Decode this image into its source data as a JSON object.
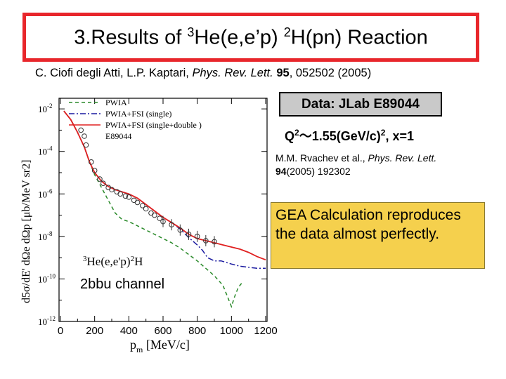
{
  "title": {
    "prefix": "3.Results of ",
    "sup1": "3",
    "mid": "He(e,e’p) ",
    "sup2": "2",
    "suffix": "H(pn) Reaction"
  },
  "citation": {
    "authors": "C. Ciofi degli Atti, L.P. Kaptari, ",
    "journal": "Phys. Rev. Lett.",
    "volume": "95",
    "rest": ", 052502 (2005)"
  },
  "data_box": "Data: JLab E89044",
  "kinematics": {
    "q": "Q",
    "q_sup": "2",
    "approx": "～1.55(GeV/c)",
    "c_sup": "2",
    "x_part": ", x=1"
  },
  "reference2": {
    "authors": "M.M. Rvachev  et al., ",
    "journal": "Phys. Rev. Lett.",
    "volume": "94",
    "rest": "(2005) 192302"
  },
  "gea_note": "GEA Calculation reproduces the data almost perfectly.",
  "channel_label": "2bbu channel",
  "reaction_label": {
    "pre": "3",
    "a": "He(e,e'p)",
    "b": "2",
    "c": "H"
  },
  "chart_data": {
    "type": "line",
    "xlabel": "p_m [MeV/c]",
    "ylabel": "d5σ/dE' dΩe dΩp [μb/MeV sr2]",
    "xlim": [
      0,
      1200
    ],
    "ylim_log10": [
      -12,
      -1.5
    ],
    "x_ticks": [
      "0",
      "200",
      "400",
      "600",
      "800",
      "1000",
      "1200"
    ],
    "y_ticks": [
      {
        "base": "10",
        "exp": "-2",
        "value": -2
      },
      {
        "base": "10",
        "exp": "-4",
        "value": -4
      },
      {
        "base": "10",
        "exp": "-6",
        "value": -6
      },
      {
        "base": "10",
        "exp": "-8",
        "value": -8
      },
      {
        "base": "10",
        "exp": "-10",
        "value": -10
      },
      {
        "base": "10",
        "exp": "-12",
        "value": -12
      }
    ],
    "legend": [
      "PWIA",
      "PWIA+FSI (single)",
      "PWIA+FSI (single+double )",
      "E89044"
    ],
    "series": [
      {
        "name": "PWIA",
        "style": "dashed",
        "color": "#2a8a2a",
        "x": [
          20,
          60,
          100,
          140,
          170,
          200,
          240,
          280,
          320,
          360,
          400,
          450,
          500,
          550,
          600,
          650,
          700,
          750,
          800,
          850,
          900,
          950,
          980,
          1000,
          1020,
          1040,
          1060
        ],
        "log10y": [
          -2.1,
          -2.5,
          -3.1,
          -3.8,
          -4.5,
          -5.1,
          -5.7,
          -6.3,
          -6.9,
          -7.2,
          -7.3,
          -7.5,
          -7.7,
          -7.9,
          -8.1,
          -8.3,
          -8.55,
          -8.85,
          -9.15,
          -9.5,
          -9.85,
          -10.3,
          -10.9,
          -11.3,
          -10.8,
          -10.4,
          -10.2
        ]
      },
      {
        "name": "PWIA+FSI (single)",
        "style": "dashdot",
        "color": "#1a1aa0",
        "x": [
          20,
          60,
          100,
          140,
          170,
          200,
          240,
          280,
          320,
          360,
          400,
          450,
          500,
          550,
          600,
          650,
          700,
          750,
          800,
          830,
          860,
          900,
          940,
          1000,
          1050,
          1100,
          1150,
          1200
        ],
        "log10y": [
          -2.1,
          -2.5,
          -3.1,
          -3.8,
          -4.5,
          -5.0,
          -5.4,
          -5.65,
          -5.8,
          -5.9,
          -6.0,
          -6.2,
          -6.5,
          -6.8,
          -7.1,
          -7.35,
          -7.65,
          -8.05,
          -8.4,
          -8.65,
          -9.0,
          -9.15,
          -9.15,
          -9.3,
          -9.4,
          -9.45,
          -9.5,
          -9.5
        ]
      },
      {
        "name": "PWIA+FSI (single+double )",
        "style": "solid",
        "color": "#e02020",
        "x": [
          20,
          60,
          100,
          140,
          170,
          200,
          240,
          280,
          320,
          360,
          400,
          450,
          500,
          550,
          600,
          650,
          700,
          750,
          800,
          850,
          900,
          950,
          1000,
          1050,
          1100,
          1150,
          1200
        ],
        "log10y": [
          -2.1,
          -2.5,
          -3.1,
          -3.8,
          -4.5,
          -5.0,
          -5.4,
          -5.65,
          -5.8,
          -5.9,
          -6.0,
          -6.2,
          -6.5,
          -6.8,
          -7.1,
          -7.35,
          -7.6,
          -7.9,
          -8.1,
          -8.2,
          -8.3,
          -8.4,
          -8.5,
          -8.6,
          -8.75,
          -8.95,
          -9.1
        ]
      },
      {
        "name": "E89044",
        "style": "points",
        "color": "#333333",
        "x": [
          120,
          150,
          180,
          200,
          230,
          250,
          280,
          300,
          330,
          350,
          380,
          400,
          430,
          450,
          480,
          500,
          530,
          550,
          580,
          600,
          650,
          700,
          750,
          800,
          850,
          900
        ],
        "log10y": [
          -3.0,
          -3.7,
          -4.5,
          -4.9,
          -5.3,
          -5.5,
          -5.7,
          -5.8,
          -5.9,
          -6.0,
          -6.1,
          -6.15,
          -6.3,
          -6.4,
          -6.55,
          -6.7,
          -6.9,
          -7.0,
          -7.15,
          -7.3,
          -7.45,
          -7.7,
          -7.9,
          -8.0,
          -8.2,
          -8.25
        ]
      }
    ]
  }
}
